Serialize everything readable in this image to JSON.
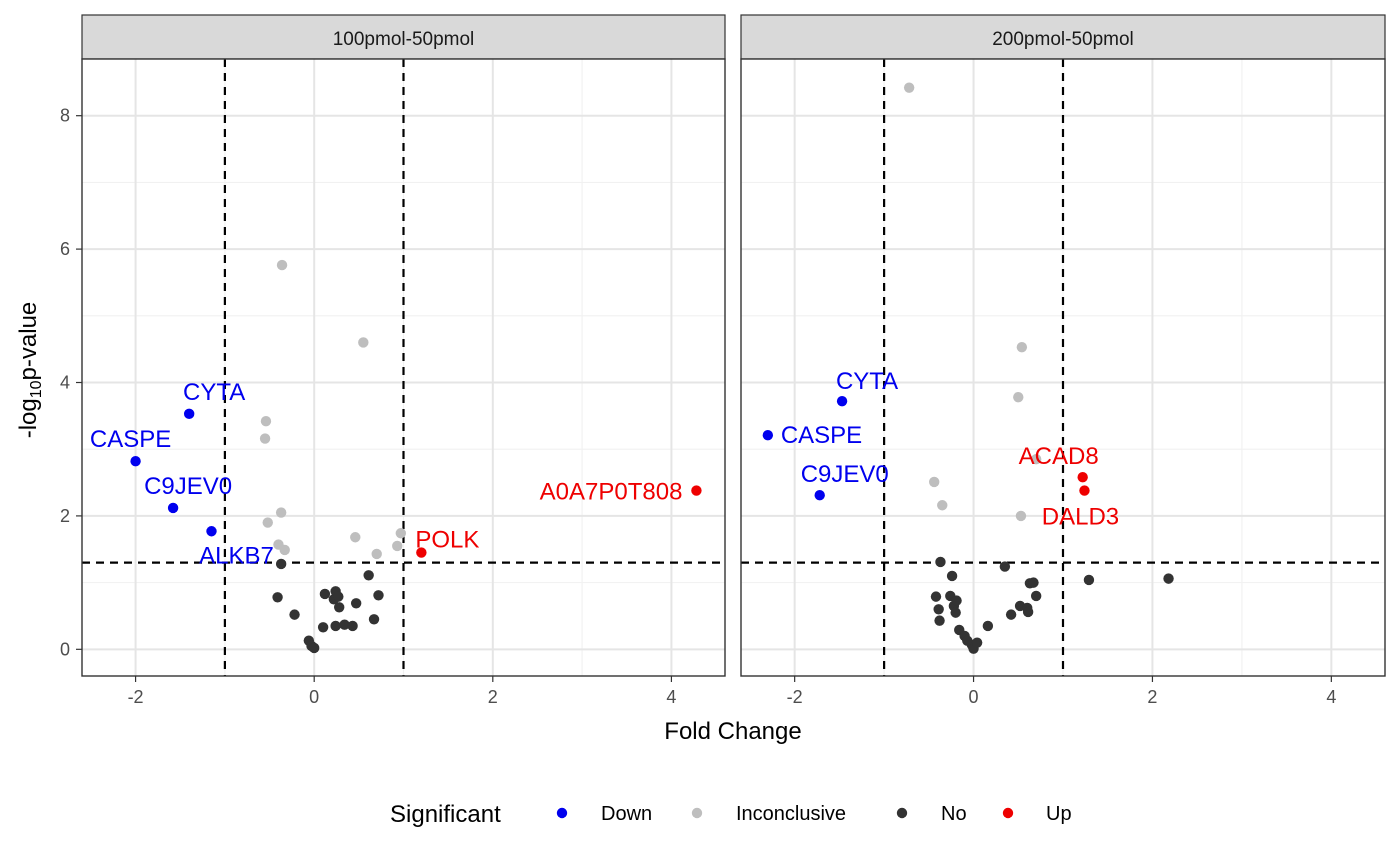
{
  "chart_data": {
    "type": "scatter",
    "xlabel": "Fold Change",
    "ylabel_main": "-log",
    "ylabel_sub": "10",
    "ylabel_tail": "p-value",
    "xlim": [
      -2.6,
      4.6
    ],
    "ylim": [
      -0.4,
      8.85
    ],
    "x_ticks": [
      -2,
      0,
      2,
      4
    ],
    "y_ticks": [
      0,
      2,
      4,
      6,
      8
    ],
    "x_tick_labels": [
      "-2",
      "0",
      "2",
      "4"
    ],
    "y_tick_labels": [
      "0",
      "2",
      "4",
      "6",
      "8"
    ],
    "vlines": [
      -1,
      1
    ],
    "hline": 1.3,
    "grid": true,
    "legend": {
      "title": "Significant",
      "position": "bottom",
      "entries": [
        {
          "label": "Down",
          "color": "#0000ee"
        },
        {
          "label": "Inconclusive",
          "color": "#bebebe"
        },
        {
          "label": "No",
          "color": "#333333"
        },
        {
          "label": "Up",
          "color": "#ee0000"
        }
      ]
    },
    "colors": {
      "Down": "#0000ee",
      "Inconclusive": "#bebebe",
      "No": "#333333",
      "Up": "#ee0000"
    },
    "panels": [
      {
        "title": "100pmol-50pmol",
        "points": [
          {
            "x": -2.0,
            "y": 2.82,
            "group": "Down",
            "label": "CASPE"
          },
          {
            "x": -1.4,
            "y": 3.53,
            "group": "Down",
            "label": "CYTA"
          },
          {
            "x": -1.58,
            "y": 2.12,
            "group": "Down",
            "label": "C9JEV0"
          },
          {
            "x": -1.15,
            "y": 1.77,
            "group": "Down",
            "label": "ALKB7"
          },
          {
            "x": 4.28,
            "y": 2.38,
            "group": "Up",
            "label": "A0A7P0T808"
          },
          {
            "x": 1.2,
            "y": 1.45,
            "group": "Up",
            "label": "POLK"
          },
          {
            "x": -0.36,
            "y": 5.76,
            "group": "Inconclusive"
          },
          {
            "x": 0.55,
            "y": 4.6,
            "group": "Inconclusive"
          },
          {
            "x": -0.54,
            "y": 3.42,
            "group": "Inconclusive"
          },
          {
            "x": -0.55,
            "y": 3.16,
            "group": "Inconclusive"
          },
          {
            "x": -0.37,
            "y": 2.05,
            "group": "Inconclusive"
          },
          {
            "x": -0.52,
            "y": 1.9,
            "group": "Inconclusive"
          },
          {
            "x": -0.4,
            "y": 1.57,
            "group": "Inconclusive"
          },
          {
            "x": -0.33,
            "y": 1.49,
            "group": "Inconclusive"
          },
          {
            "x": 0.46,
            "y": 1.68,
            "group": "Inconclusive"
          },
          {
            "x": 0.7,
            "y": 1.43,
            "group": "Inconclusive"
          },
          {
            "x": 0.93,
            "y": 1.55,
            "group": "Inconclusive"
          },
          {
            "x": 0.97,
            "y": 1.74,
            "group": "Inconclusive"
          },
          {
            "x": -0.37,
            "y": 1.28,
            "group": "No"
          },
          {
            "x": -0.41,
            "y": 0.78,
            "group": "No"
          },
          {
            "x": -0.22,
            "y": 0.52,
            "group": "No"
          },
          {
            "x": -0.06,
            "y": 0.13,
            "group": "No"
          },
          {
            "x": -0.03,
            "y": 0.05,
            "group": "No"
          },
          {
            "x": 0.0,
            "y": 0.02,
            "group": "No"
          },
          {
            "x": 0.1,
            "y": 0.33,
            "group": "No"
          },
          {
            "x": 0.12,
            "y": 0.83,
            "group": "No"
          },
          {
            "x": 0.22,
            "y": 0.75,
            "group": "No"
          },
          {
            "x": 0.24,
            "y": 0.87,
            "group": "No"
          },
          {
            "x": 0.27,
            "y": 0.79,
            "group": "No"
          },
          {
            "x": 0.28,
            "y": 0.63,
            "group": "No"
          },
          {
            "x": 0.24,
            "y": 0.35,
            "group": "No"
          },
          {
            "x": 0.34,
            "y": 0.37,
            "group": "No"
          },
          {
            "x": 0.43,
            "y": 0.35,
            "group": "No"
          },
          {
            "x": 0.47,
            "y": 0.69,
            "group": "No"
          },
          {
            "x": 0.61,
            "y": 1.11,
            "group": "No"
          },
          {
            "x": 0.67,
            "y": 0.45,
            "group": "No"
          },
          {
            "x": 0.72,
            "y": 0.81,
            "group": "No"
          }
        ]
      },
      {
        "title": "200pmol-50pmol",
        "points": [
          {
            "x": -2.3,
            "y": 3.21,
            "group": "Down",
            "label": "CASPE"
          },
          {
            "x": -1.47,
            "y": 3.72,
            "group": "Down",
            "label": "CYTA"
          },
          {
            "x": -1.72,
            "y": 2.31,
            "group": "Down",
            "label": "C9JEV0"
          },
          {
            "x": 1.22,
            "y": 2.58,
            "group": "Up",
            "label": "ACAD8"
          },
          {
            "x": 1.24,
            "y": 2.38,
            "group": "Up",
            "label": "DALD3"
          },
          {
            "x": -0.72,
            "y": 8.42,
            "group": "Inconclusive"
          },
          {
            "x": 0.54,
            "y": 4.53,
            "group": "Inconclusive"
          },
          {
            "x": 0.5,
            "y": 3.78,
            "group": "Inconclusive"
          },
          {
            "x": 0.7,
            "y": 2.85,
            "group": "Inconclusive"
          },
          {
            "x": -0.44,
            "y": 2.51,
            "group": "Inconclusive"
          },
          {
            "x": -0.35,
            "y": 2.16,
            "group": "Inconclusive"
          },
          {
            "x": 0.53,
            "y": 2.0,
            "group": "Inconclusive"
          },
          {
            "x": -0.37,
            "y": 1.31,
            "group": "No"
          },
          {
            "x": -0.24,
            "y": 1.1,
            "group": "No"
          },
          {
            "x": -0.42,
            "y": 0.79,
            "group": "No"
          },
          {
            "x": -0.39,
            "y": 0.6,
            "group": "No"
          },
          {
            "x": -0.38,
            "y": 0.43,
            "group": "No"
          },
          {
            "x": -0.26,
            "y": 0.8,
            "group": "No"
          },
          {
            "x": -0.22,
            "y": 0.65,
            "group": "No"
          },
          {
            "x": -0.19,
            "y": 0.73,
            "group": "No"
          },
          {
            "x": -0.2,
            "y": 0.55,
            "group": "No"
          },
          {
            "x": -0.16,
            "y": 0.29,
            "group": "No"
          },
          {
            "x": -0.1,
            "y": 0.2,
            "group": "No"
          },
          {
            "x": -0.07,
            "y": 0.13,
            "group": "No"
          },
          {
            "x": -0.02,
            "y": 0.07,
            "group": "No"
          },
          {
            "x": 0.0,
            "y": 0.01,
            "group": "No"
          },
          {
            "x": 0.04,
            "y": 0.1,
            "group": "No"
          },
          {
            "x": 0.16,
            "y": 0.35,
            "group": "No"
          },
          {
            "x": 0.35,
            "y": 1.24,
            "group": "No"
          },
          {
            "x": 0.42,
            "y": 0.52,
            "group": "No"
          },
          {
            "x": 0.52,
            "y": 0.65,
            "group": "No"
          },
          {
            "x": 0.6,
            "y": 0.62,
            "group": "No"
          },
          {
            "x": 0.61,
            "y": 0.56,
            "group": "No"
          },
          {
            "x": 0.63,
            "y": 0.99,
            "group": "No"
          },
          {
            "x": 0.67,
            "y": 1.0,
            "group": "No"
          },
          {
            "x": 0.7,
            "y": 0.8,
            "group": "No"
          },
          {
            "x": 1.29,
            "y": 1.04,
            "group": "No"
          },
          {
            "x": 2.18,
            "y": 1.06,
            "group": "No"
          }
        ]
      }
    ]
  }
}
